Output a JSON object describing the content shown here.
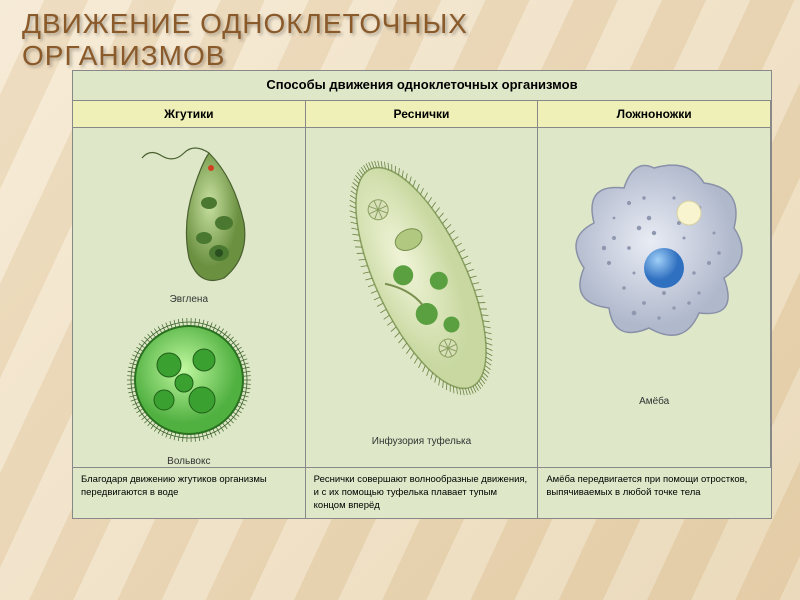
{
  "main_title_line1": "ДВИЖЕНИЕ ОДНОКЛЕТОЧНЫХ",
  "main_title_line2": "ОРГАНИЗМОВ",
  "title_color": "#8a5a2a",
  "table_bg": "#dee8c8",
  "header_bg": "#eff0b8",
  "border_color": "#888888",
  "subtitle": "Способы движения одноклеточных организмов",
  "cols": [
    {
      "header": "Жгутики",
      "label1": "Эвглена",
      "label2": "Вольвокс",
      "desc": "Благодаря движению жгутиков организмы передвигаются в воде"
    },
    {
      "header": "Реснички",
      "label1": "Инфузория туфелька",
      "desc": "Реснички совершают волнообразные движения, и с их помощью туфелька плавает тупым концом вперёд"
    },
    {
      "header": "Ложноножки",
      "label1": "Амёба",
      "desc": "Амёба передвигается при помощи отростков, выпячиваемых в любой точке тела"
    }
  ],
  "colors": {
    "euglena_body": "#8fb860",
    "euglena_dark": "#5a8040",
    "volvox_body": "#6fc850",
    "volvox_border": "#3a8030",
    "paramecium_body": "#dde8c0",
    "paramecium_border": "#a0b070",
    "paramecium_green": "#60a040",
    "amoeba_body": "#c8ccd8",
    "amoeba_nucleus": "#5090d0",
    "amoeba_vac": "#f5f0c0"
  }
}
